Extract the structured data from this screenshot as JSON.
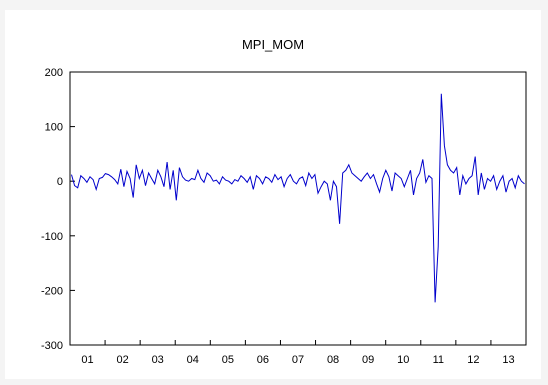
{
  "chart_data": {
    "type": "line",
    "title": "MPI_MOM",
    "xlabel": "",
    "ylabel": "",
    "ylim": [
      -300,
      200
    ],
    "yticks": [
      200,
      100,
      0,
      -100,
      -200,
      -300
    ],
    "xlim": [
      2000.92,
      2013.92
    ],
    "xtick_labels": [
      "01",
      "02",
      "03",
      "04",
      "05",
      "06",
      "07",
      "08",
      "09",
      "10",
      "11",
      "12",
      "13"
    ],
    "legend": "none",
    "grid": false,
    "line_color": "#0000cc",
    "series": [
      {
        "values": [
          12,
          -8,
          -12,
          10,
          5,
          -2,
          8,
          3,
          -15,
          5,
          7,
          14,
          12,
          8,
          3,
          -5,
          22,
          -10,
          18,
          5,
          -30,
          30,
          5,
          20,
          -8,
          15,
          5,
          -5,
          20,
          8,
          -10,
          35,
          -15,
          20,
          -35,
          25,
          8,
          2,
          0,
          5,
          3,
          20,
          5,
          -2,
          15,
          10,
          0,
          2,
          -5,
          8,
          2,
          0,
          -5,
          3,
          0,
          10,
          5,
          -2,
          8,
          -15,
          10,
          5,
          -5,
          8,
          5,
          -2,
          12,
          3,
          8,
          -10,
          5,
          12,
          0,
          -5,
          5,
          8,
          -8,
          15,
          5,
          12,
          -22,
          -10,
          0,
          -5,
          -35,
          0,
          -10,
          -78,
          15,
          20,
          30,
          15,
          10,
          5,
          0,
          8,
          15,
          5,
          12,
          -5,
          -20,
          5,
          20,
          8,
          -18,
          15,
          10,
          5,
          -10,
          5,
          20,
          -25,
          5,
          15,
          40,
          -2,
          10,
          5,
          -222,
          -120,
          160,
          65,
          30,
          20,
          15,
          25,
          -25,
          10,
          -5,
          5,
          10,
          45,
          -25,
          15,
          -15,
          5,
          0,
          10,
          -15,
          0,
          10,
          -20,
          0,
          5,
          -12,
          10,
          0,
          -5
        ]
      }
    ]
  }
}
